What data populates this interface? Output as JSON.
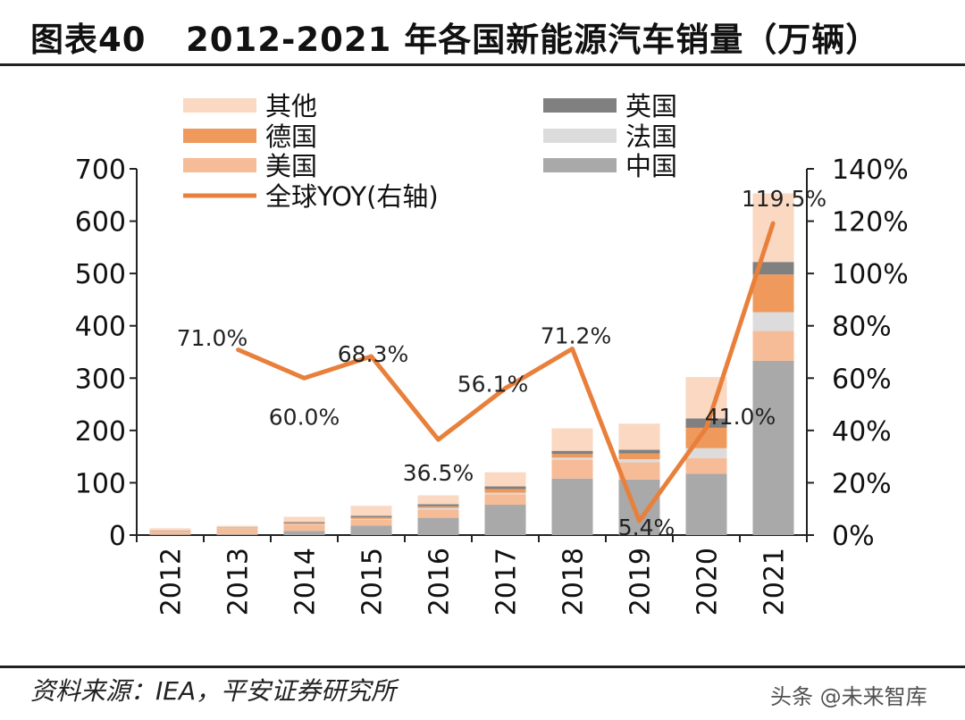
{
  "header": {
    "figure_number": "图表40",
    "title": "2012-2021 年各国新能源汽车销量（万辆）"
  },
  "footer": {
    "source": "资料来源：IEA，平安证券研究所",
    "watermark": "头条 @未来智库"
  },
  "colors": {
    "other": "#fad8c2",
    "germany": "#ef9a5c",
    "usa": "#f6bb97",
    "uk": "#808080",
    "france": "#dcdcdc",
    "china": "#a9a9a9",
    "yoy": "#e8803c"
  },
  "chart_data": {
    "type": "bar",
    "stacked": true,
    "title": "2012-2021 年各国新能源汽车销量（万辆）",
    "categories": [
      "2012",
      "2013",
      "2014",
      "2015",
      "2016",
      "2017",
      "2018",
      "2019",
      "2020",
      "2021"
    ],
    "series": [
      {
        "key": "china",
        "name": "中国",
        "values": [
          1,
          2,
          8,
          18,
          33,
          58,
          108,
          106,
          117,
          333
        ]
      },
      {
        "key": "usa",
        "name": "美国",
        "values": [
          5,
          10,
          12,
          11,
          16,
          20,
          36,
          33,
          30,
          57
        ]
      },
      {
        "key": "france",
        "name": "法国",
        "values": [
          1,
          1,
          1,
          2,
          3,
          3,
          4,
          6,
          19,
          36
        ]
      },
      {
        "key": "germany",
        "name": "德国",
        "values": [
          1,
          1,
          2,
          3,
          3,
          7,
          7,
          11,
          39,
          72
        ]
      },
      {
        "key": "uk",
        "name": "英国",
        "values": [
          0.5,
          0.6,
          2,
          3,
          4,
          5,
          6,
          7,
          18,
          24
        ]
      },
      {
        "key": "other",
        "name": "其他",
        "values": [
          4.5,
          3.4,
          10,
          19,
          17,
          27,
          43,
          50,
          79,
          131
        ]
      }
    ],
    "line_series": {
      "key": "yoy",
      "name": "全球YOY(右轴)",
      "axis": "right",
      "categories": [
        "2013",
        "2014",
        "2015",
        "2016",
        "2017",
        "2018",
        "2019",
        "2020",
        "2021"
      ],
      "values": [
        71.0,
        60.0,
        68.3,
        36.5,
        56.1,
        71.2,
        5.4,
        41.0,
        119.5
      ],
      "labels": [
        "71.0%",
        "60.0%",
        "68.3%",
        "36.5%",
        "56.1%",
        "71.2%",
        "5.4%",
        "41.0%",
        "119.5%"
      ]
    },
    "legend_order": [
      "other",
      "uk",
      "germany",
      "france",
      "usa",
      "china",
      "yoy"
    ],
    "left_axis": {
      "min": 0,
      "max": 700,
      "ticks": [
        "0",
        "100",
        "200",
        "300",
        "400",
        "500",
        "600",
        "700"
      ]
    },
    "right_axis": {
      "min": 0,
      "max": 140,
      "ticks": [
        "0%",
        "20%",
        "40%",
        "60%",
        "80%",
        "100%",
        "120%",
        "140%"
      ]
    },
    "legend_position": "top",
    "grid": false
  }
}
